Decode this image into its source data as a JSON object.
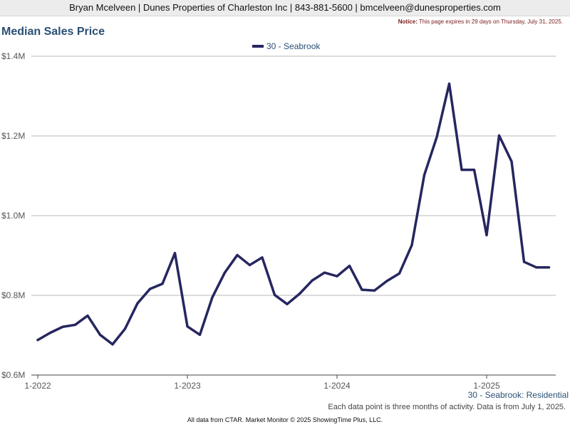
{
  "header": {
    "contact": "Bryan Mcelveen | Dunes Properties of Charleston Inc | 843-881-5600 | bmcelveen@dunesproperties.com"
  },
  "notice": {
    "label": "Notice:",
    "text": " This page expires in 29 days on Thursday, July 31, 2025."
  },
  "caption": "30 - Seabrook: Residential",
  "footnote": "Each data point is three months of activity. Data is from July 1, 2025.",
  "footer": "All data from CTAR. Market Monitor © 2025 ShowingTime Plus, LLC.",
  "colors": {
    "series": "#262660",
    "grid": "#b8b8b8",
    "axis": "#444444",
    "title": "#2a5075"
  },
  "chart_data": {
    "type": "line",
    "title": "Median Sales Price",
    "xlabel": "",
    "ylabel": "",
    "legend_position": "top-center",
    "grid": true,
    "ylim": [
      0.6,
      1.4
    ],
    "y_unit": "millions USD",
    "y_ticks": [
      {
        "value": 0.6,
        "label": "$0.6M"
      },
      {
        "value": 0.8,
        "label": "$0.8M"
      },
      {
        "value": 1.0,
        "label": "$1.0M"
      },
      {
        "value": 1.2,
        "label": "$1.2M"
      },
      {
        "value": 1.4,
        "label": "$1.4M"
      }
    ],
    "x_ticks": [
      {
        "value": "2022-01",
        "label": "1-2022"
      },
      {
        "value": "2023-01",
        "label": "1-2023"
      },
      {
        "value": "2024-01",
        "label": "1-2024"
      },
      {
        "value": "2025-01",
        "label": "1-2025"
      }
    ],
    "x": [
      "2022-01",
      "2022-02",
      "2022-03",
      "2022-04",
      "2022-05",
      "2022-06",
      "2022-07",
      "2022-08",
      "2022-09",
      "2022-10",
      "2022-11",
      "2022-12",
      "2023-01",
      "2023-02",
      "2023-03",
      "2023-04",
      "2023-05",
      "2023-06",
      "2023-07",
      "2023-08",
      "2023-09",
      "2023-10",
      "2023-11",
      "2023-12",
      "2024-01",
      "2024-02",
      "2024-03",
      "2024-04",
      "2024-05",
      "2024-06",
      "2024-07",
      "2024-08",
      "2024-09",
      "2024-10",
      "2024-11",
      "2024-12",
      "2025-01",
      "2025-02",
      "2025-03",
      "2025-04",
      "2025-05",
      "2025-06"
    ],
    "series": [
      {
        "name": "30 - Seabrook",
        "values": [
          0.688,
          0.706,
          0.721,
          0.726,
          0.749,
          0.701,
          0.677,
          0.716,
          0.78,
          0.816,
          0.829,
          0.906,
          0.722,
          0.701,
          0.795,
          0.857,
          0.901,
          0.876,
          0.895,
          0.801,
          0.778,
          0.804,
          0.837,
          0.857,
          0.848,
          0.874,
          0.814,
          0.812,
          0.836,
          0.855,
          0.926,
          1.102,
          1.197,
          1.331,
          1.115,
          1.115,
          0.951,
          1.201,
          1.136,
          0.884,
          0.87,
          0.87
        ]
      }
    ]
  }
}
